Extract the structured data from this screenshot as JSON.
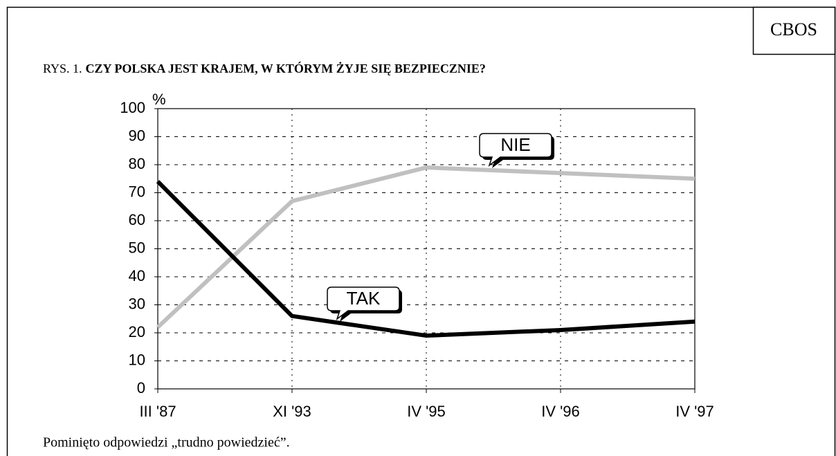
{
  "chart_data": {
    "type": "line",
    "source": "CBOS",
    "title_prefix": "RYS. 1.",
    "title": "CZY POLSKA JEST KRAJEM, W KTÓRYM ŻYJE SIĘ BEZPIECZNIE?",
    "y_label": "%",
    "categories": [
      "III '87",
      "XI '93",
      "IV '95",
      "IV '96",
      "IV '97"
    ],
    "series": [
      {
        "name": "NIE",
        "color": "#c0c0c0",
        "values": [
          22,
          67,
          79,
          77,
          75
        ]
      },
      {
        "name": "TAK",
        "color": "#000000",
        "values": [
          74,
          26,
          19,
          21,
          24
        ]
      }
    ],
    "ylim": [
      0,
      100
    ],
    "yticks": [
      0,
      10,
      20,
      30,
      40,
      50,
      60,
      70,
      80,
      90,
      100
    ],
    "grid": true,
    "footnote": "Pominięto odpowiedzi „trudno powiedzieć”."
  }
}
